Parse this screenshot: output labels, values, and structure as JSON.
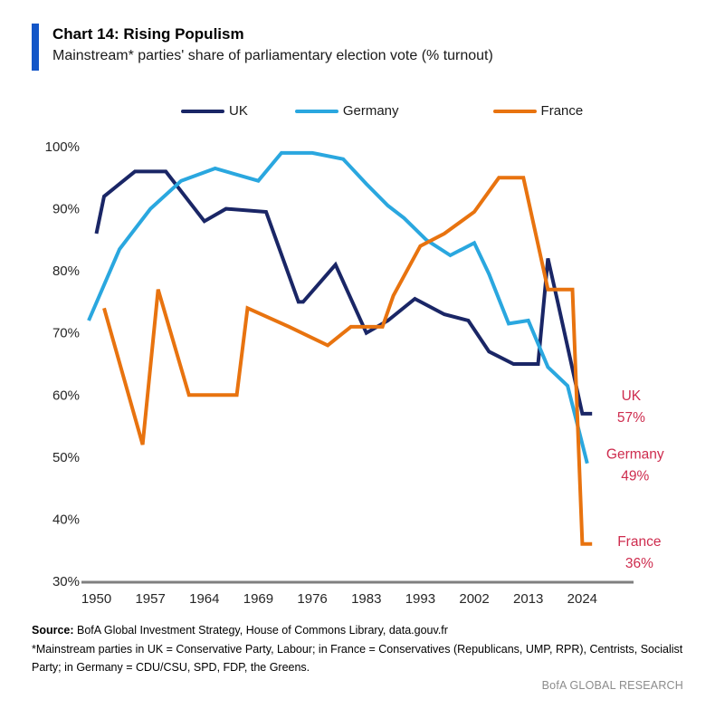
{
  "header": {
    "title": "Chart 14: Rising Populism",
    "subtitle": "Mainstream* parties' share of parliamentary election vote (% turnout)"
  },
  "footer": {
    "source_label": "Source:",
    "source_text": " BofA Global Investment Strategy, House of Commons Library, data.gouv.fr",
    "footnote": "*Mainstream parties in UK = Conservative Party, Labour; in France = Conservatives (Republicans, UMP, RPR), Centrists, Socialist Party; in Germany = CDU/CSU, SPD, FDP, the Greens.",
    "brand": "BofA GLOBAL RESEARCH"
  },
  "colors": {
    "accent_bar": "#1356C8",
    "axis_gray": "#7f7f7f",
    "tick_text": "#262626",
    "end_label_red": "#CE2C4E"
  },
  "chart_data": {
    "type": "line",
    "title": "Chart 14: Rising Populism",
    "subtitle": "Mainstream* parties' share of parliamentary election vote (% turnout)",
    "grid": false,
    "legend_position": "top",
    "y_axis": {
      "min": 30,
      "max": 100,
      "unit": "%",
      "ticks": [
        {
          "label": "100%",
          "value": 100
        },
        {
          "label": "90%",
          "value": 90
        },
        {
          "label": "80%",
          "value": 80
        },
        {
          "label": "70%",
          "value": 70
        },
        {
          "label": "60%",
          "value": 60
        },
        {
          "label": "50%",
          "value": 50
        },
        {
          "label": "40%",
          "value": 40
        },
        {
          "label": "30%",
          "value": 30
        }
      ]
    },
    "x_ticks": [
      "1950",
      "1957",
      "1964",
      "1969",
      "1976",
      "1983",
      "1993",
      "2002",
      "2013",
      "2024"
    ],
    "series": [
      {
        "name": "UK",
        "color": "#1A2666",
        "end_label": [
          "UK",
          "57%"
        ],
        "label_dx": 54,
        "label_dy": -15,
        "tail_years": 2,
        "points": [
          [
            1950,
            86
          ],
          [
            1951,
            92
          ],
          [
            1955,
            96
          ],
          [
            1959,
            96
          ],
          [
            1964,
            88
          ],
          [
            1966,
            90
          ],
          [
            1970,
            89.5
          ],
          [
            1974.2,
            75
          ],
          [
            1974.8,
            75
          ],
          [
            1979,
            81
          ],
          [
            1983,
            70
          ],
          [
            1987,
            72
          ],
          [
            1992,
            75.5
          ],
          [
            1997,
            73
          ],
          [
            2001,
            72
          ],
          [
            2005,
            67
          ],
          [
            2010,
            65
          ],
          [
            2015,
            65
          ],
          [
            2017,
            82
          ],
          [
            2019,
            75
          ],
          [
            2024,
            57
          ]
        ]
      },
      {
        "name": "Germany",
        "color": "#2AA7DF",
        "end_label": [
          "Germany",
          "49%"
        ],
        "label_dx": 53,
        "label_dy": -5,
        "tail_years": 0,
        "points": [
          [
            1949,
            72
          ],
          [
            1953,
            83.5
          ],
          [
            1957,
            90
          ],
          [
            1961,
            94.5
          ],
          [
            1965,
            96.5
          ],
          [
            1969,
            94.5
          ],
          [
            1972,
            99
          ],
          [
            1976,
            99
          ],
          [
            1980,
            98
          ],
          [
            1983,
            94
          ],
          [
            1987,
            90.5
          ],
          [
            1990,
            88.5
          ],
          [
            1994,
            85
          ],
          [
            1998,
            82.5
          ],
          [
            2002,
            84.5
          ],
          [
            2005,
            79.5
          ],
          [
            2009,
            71.5
          ],
          [
            2013,
            72
          ],
          [
            2017,
            64.5
          ],
          [
            2021,
            61.5
          ],
          [
            2025,
            49
          ]
        ]
      },
      {
        "name": "France",
        "color": "#E8730F",
        "end_label": [
          "France",
          "36%"
        ],
        "label_dx": 63,
        "label_dy": 2,
        "tail_years": 2,
        "points": [
          [
            1951,
            74
          ],
          [
            1956,
            52
          ],
          [
            1958,
            77
          ],
          [
            1962,
            60
          ],
          [
            1967,
            60
          ],
          [
            1968,
            74
          ],
          [
            1973,
            71
          ],
          [
            1978,
            68
          ],
          [
            1981,
            71
          ],
          [
            1986,
            71
          ],
          [
            1988,
            76
          ],
          [
            1993,
            84
          ],
          [
            1997,
            86
          ],
          [
            2002,
            89.5
          ],
          [
            2007,
            95
          ],
          [
            2012,
            95
          ],
          [
            2017,
            77
          ],
          [
            2022,
            77
          ],
          [
            2024,
            36
          ]
        ]
      }
    ]
  }
}
